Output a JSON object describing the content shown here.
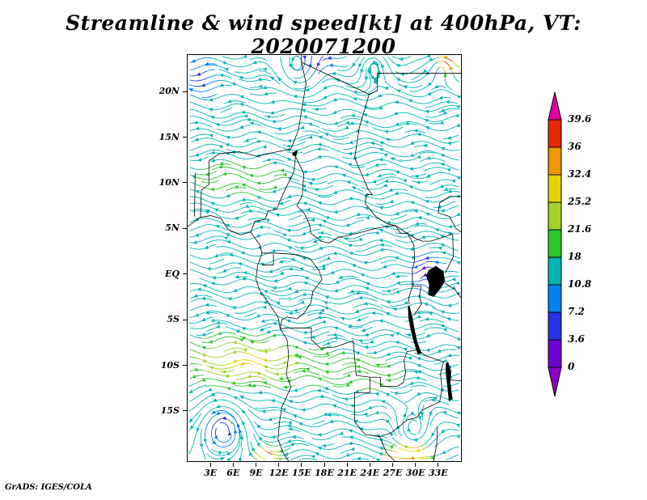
{
  "title": "Streamline & wind speed[kt] at 400hPa, VT: 2020071200",
  "credit": "GrADS: IGES/COLA",
  "chart_data": {
    "type": "streamline",
    "title": "Streamline & wind speed[kt] at 400hPa, VT: 2020071200",
    "variable": "wind speed",
    "units": "kt",
    "level": "400hPa",
    "valid_time": "2020071200",
    "lon_range": [
      0,
      36
    ],
    "lat_range": [
      -20.5,
      24
    ],
    "x_ticks": [
      {
        "label": "3E",
        "lon": 3
      },
      {
        "label": "6E",
        "lon": 6
      },
      {
        "label": "9E",
        "lon": 9
      },
      {
        "label": "12E",
        "lon": 12
      },
      {
        "label": "15E",
        "lon": 15
      },
      {
        "label": "18E",
        "lon": 18
      },
      {
        "label": "21E",
        "lon": 21
      },
      {
        "label": "24E",
        "lon": 24
      },
      {
        "label": "27E",
        "lon": 27
      },
      {
        "label": "30E",
        "lon": 30
      },
      {
        "label": "33E",
        "lon": 33
      }
    ],
    "y_ticks": [
      {
        "label": "20N",
        "lat": 20
      },
      {
        "label": "15N",
        "lat": 15
      },
      {
        "label": "10N",
        "lat": 10
      },
      {
        "label": "5N",
        "lat": 5
      },
      {
        "label": "EQ",
        "lat": 0
      },
      {
        "label": "5S",
        "lat": -5
      },
      {
        "label": "10S",
        "lat": -10
      },
      {
        "label": "15S",
        "lat": -15
      }
    ],
    "colorbar": {
      "levels": [
        0,
        3.6,
        7.2,
        10.8,
        18,
        21.6,
        25.2,
        32.4,
        36,
        39.6
      ],
      "labels_top_to_bottom": [
        "39.6",
        "36",
        "32.4",
        "25.2",
        "21.6",
        "18",
        "10.8",
        "7.2",
        "3.6",
        "0"
      ],
      "colors_low_to_high": [
        "#8c00c8",
        "#6e00d2",
        "#2832e6",
        "#0082f0",
        "#00b4b4",
        "#28c828",
        "#a0d228",
        "#e6d200",
        "#f09600",
        "#e62800",
        "#e100a0"
      ]
    },
    "field": {
      "base_speed": 13,
      "meander": {
        "amp": 0.35,
        "wavelength": 7
      },
      "speed_blobs": [
        {
          "lon": 7,
          "lat": -9.5,
          "amp": 13,
          "rlon": 9,
          "rlat": 3.2
        },
        {
          "lon": 7,
          "lat": 10.5,
          "amp": 8,
          "rlon": 9,
          "rlat": 3
        },
        {
          "lon": 24,
          "lat": -11,
          "amp": 6,
          "rlon": 10,
          "rlat": 4
        },
        {
          "lon": 31.3,
          "lat": 0.3,
          "amp": -11,
          "rlon": 1.8,
          "rlat": 1.8
        },
        {
          "lon": 17,
          "lat": 23.5,
          "amp": -9,
          "rlon": 2.5,
          "rlat": 1.5
        },
        {
          "lon": 1.5,
          "lat": 21.5,
          "amp": -7,
          "rlon": 2.5,
          "rlat": 2.5
        },
        {
          "lon": 34.2,
          "lat": 23.2,
          "amp": 30,
          "rlon": 1.4,
          "rlat": 1.2
        },
        {
          "lon": 29,
          "lat": -20,
          "amp": 22,
          "rlon": 3,
          "rlat": 1.5
        },
        {
          "lon": 10.5,
          "lat": -19.8,
          "amp": 26,
          "rlon": 1.5,
          "rlat": 1.0
        },
        {
          "lon": 4.5,
          "lat": -16.8,
          "amp": -8,
          "rlon": 2.2,
          "rlat": 2.2
        },
        {
          "lon": 33,
          "lat": 22.5,
          "amp": -8,
          "rlon": 1.5,
          "rlat": 1.2
        }
      ],
      "vortices": [
        {
          "lon": 4.5,
          "lat": -16.8,
          "strength": 2.2,
          "radius": 3
        },
        {
          "lon": 14.5,
          "lat": 22.6,
          "strength": -1.8,
          "radius": 2.5
        },
        {
          "lon": 24.5,
          "lat": 23.2,
          "strength": 1.5,
          "radius": 2
        },
        {
          "lon": 31.5,
          "lat": 0.3,
          "strength": 1.2,
          "radius": 1.5
        },
        {
          "lon": 29.5,
          "lat": -17.5,
          "strength": -1.4,
          "radius": 2.5
        },
        {
          "lon": 33.5,
          "lat": 23.0,
          "strength": 1.4,
          "radius": 1.8
        }
      ]
    }
  },
  "map": {
    "borders": [
      [
        [
          0,
          5.2
        ],
        [
          1.6,
          6.2
        ],
        [
          3.0,
          6.4
        ],
        [
          4.4,
          6.1
        ],
        [
          5.3,
          4.9
        ],
        [
          6.9,
          4.3
        ],
        [
          8.3,
          4.6
        ],
        [
          8.9,
          3.9
        ],
        [
          9.5,
          3.2
        ],
        [
          9.8,
          2.3
        ],
        [
          9.2,
          0.9
        ],
        [
          9.0,
          -0.6
        ],
        [
          9.5,
          -1.8
        ],
        [
          10.6,
          -3.1
        ],
        [
          11.9,
          -4.7
        ],
        [
          12.2,
          -6.0
        ],
        [
          13.1,
          -7.2
        ],
        [
          13.3,
          -8.9
        ],
        [
          13.0,
          -11.0
        ],
        [
          13.6,
          -12.4
        ],
        [
          12.4,
          -14.6
        ],
        [
          12.1,
          -16.2
        ],
        [
          11.9,
          -18.1
        ],
        [
          12.6,
          -19.6
        ],
        [
          13.3,
          -20.5
        ]
      ],
      [
        [
          0.9,
          6.3
        ],
        [
          1.0,
          11.1
        ]
      ],
      [
        [
          1.7,
          6.2
        ],
        [
          1.8,
          9.2
        ],
        [
          2.8,
          9.8
        ],
        [
          2.8,
          12.4
        ]
      ],
      [
        [
          2.8,
          12.4
        ],
        [
          4.2,
          13.2
        ],
        [
          6.8,
          13.4
        ],
        [
          9.2,
          12.9
        ],
        [
          11.2,
          13.3
        ],
        [
          13.6,
          13.7
        ]
      ],
      [
        [
          13.6,
          13.7
        ],
        [
          14.6,
          15.8
        ],
        [
          15.6,
          20.9
        ],
        [
          15.0,
          23.2
        ],
        [
          15.0,
          24.0
        ]
      ],
      [
        [
          15.0,
          23.2
        ],
        [
          23.9,
          19.7
        ],
        [
          25.0,
          20.1
        ],
        [
          25.0,
          22.0
        ],
        [
          36.0,
          22.0
        ]
      ],
      [
        [
          23.9,
          19.7
        ],
        [
          22.6,
          16.0
        ],
        [
          22.0,
          12.7
        ],
        [
          22.9,
          11.0
        ],
        [
          23.7,
          9.4
        ],
        [
          24.3,
          8.7
        ],
        [
          23.5,
          8.7
        ],
        [
          23.4,
          7.7
        ],
        [
          24.8,
          6.3
        ],
        [
          26.3,
          5.5
        ],
        [
          27.4,
          5.3
        ]
      ],
      [
        [
          14.2,
          12.9
        ],
        [
          14.0,
          11.2
        ],
        [
          12.8,
          9.2
        ],
        [
          11.7,
          7.1
        ],
        [
          10.6,
          6.9
        ],
        [
          10.2,
          6.0
        ],
        [
          8.9,
          5.8
        ],
        [
          8.3,
          4.6
        ]
      ],
      [
        [
          14.2,
          12.9
        ],
        [
          15.3,
          11.0
        ],
        [
          15.1,
          8.6
        ],
        [
          14.4,
          7.5
        ],
        [
          15.4,
          6.6
        ],
        [
          16.1,
          5.3
        ],
        [
          16.2,
          4.5
        ]
      ],
      [
        [
          16.2,
          4.5
        ],
        [
          17.6,
          3.6
        ],
        [
          18.6,
          3.4
        ],
        [
          19.8,
          4.0
        ],
        [
          21.5,
          4.3
        ],
        [
          23.0,
          4.6
        ],
        [
          24.7,
          5.0
        ],
        [
          26.0,
          5.2
        ],
        [
          27.4,
          5.3
        ]
      ],
      [
        [
          9.8,
          2.3
        ],
        [
          11.4,
          2.3
        ],
        [
          13.3,
          2.2
        ],
        [
          14.5,
          2.1
        ],
        [
          16.1,
          1.7
        ],
        [
          17.3,
          0.4
        ],
        [
          17.7,
          -0.6
        ],
        [
          16.5,
          -1.9
        ],
        [
          16.2,
          -3.2
        ],
        [
          15.3,
          -4.3
        ],
        [
          14.4,
          -4.9
        ],
        [
          13.1,
          -4.7
        ],
        [
          12.4,
          -5.0
        ],
        [
          12.2,
          -6.0
        ]
      ],
      [
        [
          9.8,
          1.0
        ],
        [
          11.3,
          1.0
        ],
        [
          11.3,
          2.2
        ]
      ],
      [
        [
          12.2,
          -6.0
        ],
        [
          13.1,
          -5.9
        ],
        [
          16.3,
          -5.9
        ],
        [
          16.3,
          -7.2
        ],
        [
          17.5,
          -8.1
        ],
        [
          19.4,
          -8.0
        ],
        [
          21.8,
          -7.3
        ],
        [
          22.2,
          -11.1
        ],
        [
          24.0,
          -11.3
        ],
        [
          24.0,
          -13.0
        ],
        [
          22.0,
          -13.0
        ],
        [
          22.0,
          -16.2
        ],
        [
          23.4,
          -17.6
        ],
        [
          25.3,
          -17.8
        ]
      ],
      [
        [
          25.3,
          -17.8
        ],
        [
          26.2,
          -19.6
        ],
        [
          27.3,
          -20.5
        ]
      ],
      [
        [
          32.9,
          -16.7
        ],
        [
          32.8,
          -18.6
        ],
        [
          32.4,
          -20.5
        ]
      ],
      [
        [
          30.4,
          -8.3
        ],
        [
          31.2,
          -8.9
        ],
        [
          32.9,
          -9.4
        ],
        [
          33.7,
          -9.6
        ],
        [
          33.3,
          -10.9
        ],
        [
          33.5,
          -12.5
        ],
        [
          33.2,
          -14.0
        ],
        [
          30.9,
          -14.9
        ],
        [
          30.2,
          -15.7
        ],
        [
          28.9,
          -16.0
        ],
        [
          28.0,
          -16.6
        ],
        [
          26.8,
          -17.4
        ],
        [
          25.3,
          -17.8
        ]
      ],
      [
        [
          24.0,
          -11.3
        ],
        [
          25.4,
          -11.3
        ],
        [
          25.4,
          -12.3
        ],
        [
          26.9,
          -12.3
        ],
        [
          27.6,
          -12.3
        ],
        [
          28.4,
          -11.9
        ],
        [
          28.7,
          -10.8
        ],
        [
          28.5,
          -9.4
        ],
        [
          28.9,
          -8.5
        ],
        [
          30.4,
          -8.3
        ]
      ],
      [
        [
          27.4,
          5.3
        ],
        [
          28.0,
          4.5
        ],
        [
          29.0,
          4.4
        ],
        [
          29.8,
          3.2
        ],
        [
          29.9,
          1.5
        ],
        [
          29.6,
          0.5
        ],
        [
          29.6,
          -1.3
        ],
        [
          29.1,
          -2.7
        ],
        [
          29.2,
          -3.3
        ]
      ],
      [
        [
          27.4,
          5.3
        ],
        [
          30.0,
          3.9
        ],
        [
          30.9,
          3.6
        ],
        [
          32.0,
          3.6
        ],
        [
          33.9,
          4.1
        ],
        [
          34.9,
          4.4
        ]
      ],
      [
        [
          34.9,
          4.4
        ],
        [
          35.0,
          1.9
        ],
        [
          33.9,
          0.1
        ]
      ],
      [
        [
          33.9,
          -1.0
        ],
        [
          35.2,
          -1.7
        ],
        [
          36.0,
          -2.6
        ]
      ],
      [
        [
          29.6,
          -1.3
        ],
        [
          30.8,
          -1.3
        ],
        [
          30.5,
          -2.4
        ],
        [
          30.8,
          -3.3
        ],
        [
          29.8,
          -4.5
        ]
      ],
      [
        [
          34.6,
          -11.6
        ],
        [
          36.0,
          -11.7
        ]
      ],
      [
        [
          36.0,
          8.5
        ],
        [
          34.5,
          8.5
        ],
        [
          33.2,
          7.8
        ],
        [
          33.0,
          6.7
        ],
        [
          34.5,
          6.3
        ],
        [
          35.3,
          5.0
        ],
        [
          36.0,
          4.6
        ]
      ]
    ],
    "lakes": [
      [
        [
          31.7,
          0.4
        ],
        [
          32.7,
          0.9
        ],
        [
          33.7,
          0.3
        ],
        [
          33.9,
          -0.8
        ],
        [
          33.2,
          -1.7
        ],
        [
          32.4,
          -2.5
        ],
        [
          31.7,
          -2.3
        ],
        [
          31.8,
          -1.1
        ],
        [
          31.4,
          -0.2
        ]
      ],
      [
        [
          29.2,
          -3.4
        ],
        [
          29.6,
          -4.7
        ],
        [
          29.9,
          -6.1
        ],
        [
          30.2,
          -7.3
        ],
        [
          30.8,
          -8.7
        ],
        [
          30.3,
          -8.8
        ],
        [
          29.8,
          -7.5
        ],
        [
          29.4,
          -6.2
        ],
        [
          29.1,
          -4.9
        ],
        [
          29.0,
          -3.6
        ]
      ],
      [
        [
          34.3,
          -9.6
        ],
        [
          34.7,
          -10.7
        ],
        [
          34.6,
          -12.0
        ],
        [
          34.9,
          -13.7
        ],
        [
          34.4,
          -13.9
        ],
        [
          34.2,
          -12.3
        ],
        [
          34.0,
          -10.9
        ],
        [
          34.0,
          -9.8
        ]
      ],
      [
        [
          13.8,
          13.3
        ],
        [
          14.5,
          13.6
        ],
        [
          14.3,
          12.9
        ],
        [
          13.8,
          13.0
        ]
      ]
    ]
  }
}
